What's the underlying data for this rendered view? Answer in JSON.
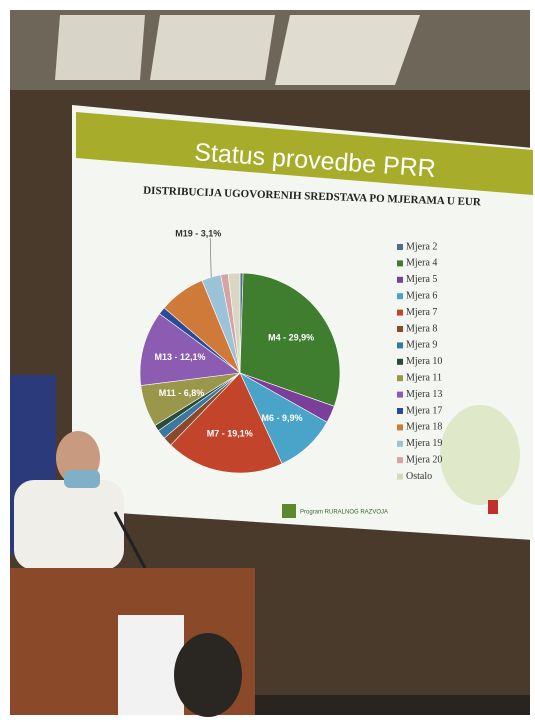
{
  "slide_title": "Status provedbe PRR",
  "footer_logo": "Program RURALNOG RAZVOJA",
  "chart_data": {
    "type": "pie",
    "title": "DISTRIBUCIJA UGOVORENIH SREDSTAVA PO MJERAMA U EUR",
    "categories": [
      "Mjera 2",
      "Mjera 4",
      "Mjera 5",
      "Mjera 6",
      "Mjera 7",
      "Mjera 8",
      "Mjera 9",
      "Mjera 10",
      "Mjera 11",
      "Mjera 13",
      "Mjera 17",
      "Mjera 18",
      "Mjera 19",
      "Mjera 20",
      "Ostalo"
    ],
    "values": [
      0.5,
      29.9,
      2.8,
      9.9,
      19.1,
      1.5,
      1.5,
      1,
      6.8,
      12.1,
      1.2,
      7.5,
      3.1,
      1.2,
      1.9
    ],
    "value_labels": [
      null,
      "M4 - 29,9%",
      null,
      "M6 - 9,9%",
      "M7 - 19,1%",
      null,
      null,
      null,
      "M11 - 6,8%",
      "M13 - 12,1%",
      null,
      null,
      "M19 - 3,1%",
      null,
      null
    ],
    "colors": [
      "#4d6f8e",
      "#3f7d2f",
      "#7b3f9a",
      "#4aa3c8",
      "#c2452b",
      "#8a4a2a",
      "#3a78a0",
      "#2a4a3a",
      "#9a964a",
      "#8c5cb2",
      "#2a4a9a",
      "#d07a3a",
      "#9cc2d8",
      "#d4a4a4",
      "#d8d8c2"
    ],
    "legend": "right"
  }
}
